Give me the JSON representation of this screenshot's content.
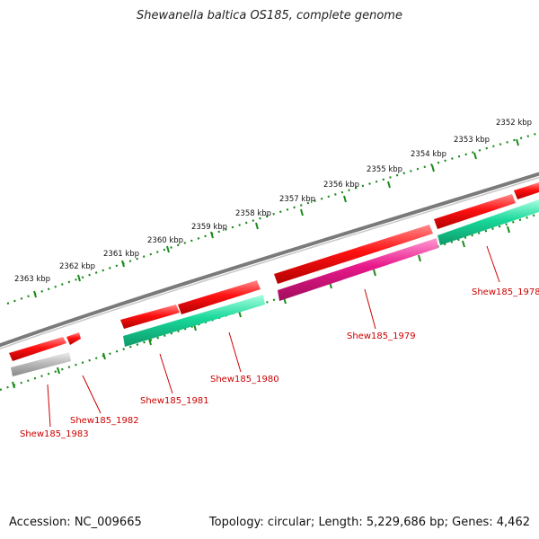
{
  "title": "Shewanella baltica OS185, complete genome",
  "footer": {
    "accession": "Accession: NC_009665",
    "summary": "Topology: circular; Length: 5,229,686 bp; Genes: 4,462"
  },
  "outer_ticks": [
    "2352 kbp",
    "2353 kbp",
    "2354 kbp",
    "2355 kbp",
    "2356 kbp",
    "2357 kbp",
    "2358 kbp",
    "2359 kbp",
    "2360 kbp",
    "2361 kbp",
    "2362 kbp",
    "2363 kbp"
  ],
  "genes": [
    {
      "label": "Shew185_1978",
      "color": "#19d89a"
    },
    {
      "label": "Shew185_1979",
      "color": "#e8188a"
    },
    {
      "label": "Shew185_1980",
      "color": "#19d89a"
    },
    {
      "label": "Shew185_1981",
      "color": "#19d89a"
    },
    {
      "label": "Shew185_1982",
      "color": "#aaaaaa"
    },
    {
      "label": "Shew185_1983",
      "color": "#aaaaaa"
    }
  ],
  "colors": {
    "forward_gene": "#ee1111",
    "backbone": "#7a7a7a",
    "tick": "#1a8a1a",
    "label": "#cc0000"
  }
}
